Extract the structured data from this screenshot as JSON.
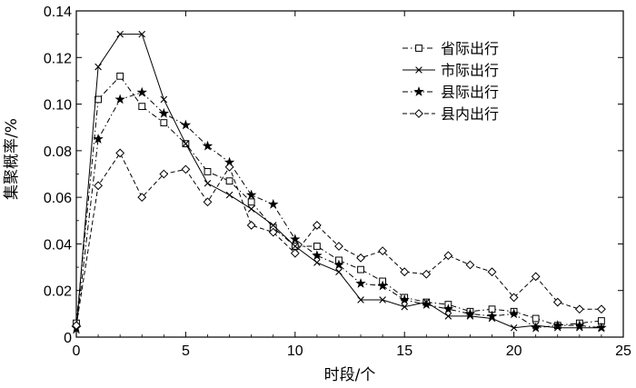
{
  "chart_data": {
    "type": "line",
    "xlabel": "时段/个",
    "ylabel": "集聚概率/%",
    "xlim": [
      0,
      25
    ],
    "ylim": [
      0,
      0.14
    ],
    "x_ticks": [
      "0",
      "5",
      "10",
      "15",
      "20",
      "25"
    ],
    "y_ticks": [
      "0",
      "0.02",
      "0.04",
      "0.06",
      "0.08",
      "0.10",
      "0.12",
      "0.14"
    ],
    "grid": false,
    "legend_position": "top-right",
    "x": [
      0,
      1,
      2,
      3,
      4,
      5,
      6,
      7,
      8,
      9,
      10,
      11,
      12,
      13,
      14,
      15,
      16,
      17,
      18,
      19,
      20,
      21,
      22,
      23,
      24
    ],
    "series": [
      {
        "name": "省际出行",
        "marker": "square",
        "line": "dash-dot",
        "values": [
          0.006,
          0.102,
          0.112,
          0.099,
          0.092,
          0.083,
          0.071,
          0.067,
          0.058,
          0.047,
          0.039,
          0.039,
          0.033,
          0.029,
          0.024,
          0.017,
          0.015,
          0.014,
          0.011,
          0.012,
          0.011,
          0.008,
          0.005,
          0.006,
          0.007
        ]
      },
      {
        "name": "市际出行",
        "marker": "x",
        "line": "solid",
        "values": [
          0.003,
          0.116,
          0.13,
          0.13,
          0.102,
          0.083,
          0.066,
          0.061,
          0.055,
          0.048,
          0.039,
          0.032,
          0.028,
          0.016,
          0.016,
          0.013,
          0.015,
          0.009,
          0.009,
          0.008,
          0.004,
          0.005,
          0.004,
          0.004,
          0.004
        ]
      },
      {
        "name": "县际出行",
        "marker": "star",
        "line": "dash-dot",
        "values": [
          0.004,
          0.085,
          0.102,
          0.105,
          0.096,
          0.091,
          0.082,
          0.075,
          0.061,
          0.057,
          0.042,
          0.035,
          0.031,
          0.023,
          0.022,
          0.016,
          0.014,
          0.012,
          0.01,
          0.009,
          0.01,
          0.004,
          0.005,
          0.005,
          0.004
        ]
      },
      {
        "name": "县内出行",
        "marker": "diamond",
        "line": "dashed",
        "values": [
          0.005,
          0.065,
          0.079,
          0.06,
          0.07,
          0.072,
          0.058,
          0.073,
          0.048,
          0.045,
          0.036,
          0.048,
          0.039,
          0.034,
          0.037,
          0.028,
          0.027,
          0.035,
          0.031,
          0.028,
          0.017,
          0.026,
          0.015,
          0.012,
          0.012
        ]
      }
    ]
  }
}
